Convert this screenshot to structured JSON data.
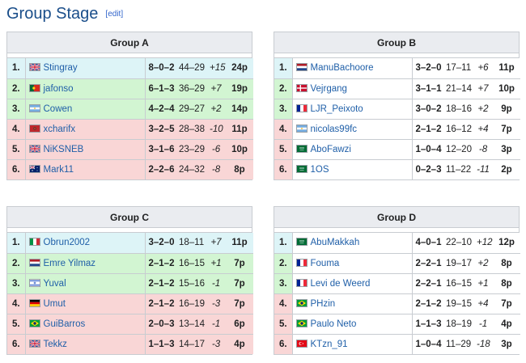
{
  "section": {
    "title": "Group Stage",
    "edit_label": "edit",
    "bracket_open": "[",
    "bracket_close": "]"
  },
  "groups": [
    {
      "title": "Group A",
      "rows": [
        {
          "pos": "1.",
          "flag": "uk",
          "player": "Stingray",
          "record": "8–0–2",
          "score": "44–29",
          "diff": "+15",
          "pts": "24p",
          "status": "adv"
        },
        {
          "pos": "2.",
          "flag": "portugal",
          "player": "jafonso",
          "record": "6–1–3",
          "score": "36–29",
          "diff": "+7",
          "pts": "19p",
          "status": "qual"
        },
        {
          "pos": "3.",
          "flag": "argentina",
          "player": "Cowen",
          "record": "4–2–4",
          "score": "29–27",
          "diff": "+2",
          "pts": "14p",
          "status": "qual"
        },
        {
          "pos": "4.",
          "flag": "morocco",
          "player": "xcharifx",
          "record": "3–2–5",
          "score": "28–38",
          "diff": "-10",
          "pts": "11p",
          "status": "out"
        },
        {
          "pos": "5.",
          "flag": "uk",
          "player": "NiKSNEB",
          "record": "3–1–6",
          "score": "23–29",
          "diff": "-6",
          "pts": "10p",
          "status": "out"
        },
        {
          "pos": "6.",
          "flag": "australia",
          "player": "Mark11",
          "record": "2–2–6",
          "score": "24–32",
          "diff": "-8",
          "pts": "8p",
          "status": "out"
        }
      ]
    },
    {
      "title": "Group B",
      "rows": [
        {
          "pos": "1.",
          "flag": "netherlands",
          "player": "ManuBachoore",
          "record": "3–2–0",
          "score": "17–11",
          "diff": "+6",
          "pts": "11p",
          "status": "adv"
        },
        {
          "pos": "2.",
          "flag": "denmark",
          "player": "Vejrgang",
          "record": "3–1–1",
          "score": "21–14",
          "diff": "+7",
          "pts": "10p",
          "status": "qual"
        },
        {
          "pos": "3.",
          "flag": "france",
          "player": "LJR_Peixoto",
          "record": "3–0–2",
          "score": "18–16",
          "diff": "+2",
          "pts": "9p",
          "status": "qual"
        },
        {
          "pos": "4.",
          "flag": "argentina",
          "player": "nicolas99fc",
          "record": "2–1–2",
          "score": "16–12",
          "diff": "+4",
          "pts": "7p",
          "status": "out"
        },
        {
          "pos": "5.",
          "flag": "saudi",
          "player": "AboFawzi",
          "record": "1–0–4",
          "score": "12–20",
          "diff": "-8",
          "pts": "3p",
          "status": "out"
        },
        {
          "pos": "6.",
          "flag": "saudi",
          "player": "1OS",
          "record": "0–2–3",
          "score": "11–22",
          "diff": "-11",
          "pts": "2p",
          "status": "out"
        }
      ]
    },
    {
      "title": "Group C",
      "rows": [
        {
          "pos": "1.",
          "flag": "italy",
          "player": "Obrun2002",
          "record": "3–2–0",
          "score": "18–11",
          "diff": "+7",
          "pts": "11p",
          "status": "adv"
        },
        {
          "pos": "2.",
          "flag": "netherlands",
          "player": "Emre Yilmaz",
          "record": "2–1–2",
          "score": "16–15",
          "diff": "+1",
          "pts": "7p",
          "status": "qual"
        },
        {
          "pos": "3.",
          "flag": "israel",
          "player": "Yuval",
          "record": "2–1–2",
          "score": "15–16",
          "diff": "-1",
          "pts": "7p",
          "status": "qual"
        },
        {
          "pos": "4.",
          "flag": "germany",
          "player": "Umut",
          "record": "2–1–2",
          "score": "16–19",
          "diff": "-3",
          "pts": "7p",
          "status": "out"
        },
        {
          "pos": "5.",
          "flag": "brazil",
          "player": "GuiBarros",
          "record": "2–0–3",
          "score": "13–14",
          "diff": "-1",
          "pts": "6p",
          "status": "out"
        },
        {
          "pos": "6.",
          "flag": "uk",
          "player": "Tekkz",
          "record": "1–1–3",
          "score": "14–17",
          "diff": "-3",
          "pts": "4p",
          "status": "out"
        }
      ]
    },
    {
      "title": "Group D",
      "rows": [
        {
          "pos": "1.",
          "flag": "saudi",
          "player": "AbuMakkah",
          "record": "4–0–1",
          "score": "22–10",
          "diff": "+12",
          "pts": "12p",
          "status": "adv"
        },
        {
          "pos": "2.",
          "flag": "france",
          "player": "Fouma",
          "record": "2–2–1",
          "score": "19–17",
          "diff": "+2",
          "pts": "8p",
          "status": "qual"
        },
        {
          "pos": "3.",
          "flag": "france",
          "player": "Levi de Weerd",
          "record": "2–2–1",
          "score": "16–15",
          "diff": "+1",
          "pts": "8p",
          "status": "qual"
        },
        {
          "pos": "4.",
          "flag": "brazil",
          "player": "PHzin",
          "record": "2–1–2",
          "score": "19–15",
          "diff": "+4",
          "pts": "7p",
          "status": "out"
        },
        {
          "pos": "5.",
          "flag": "brazil",
          "player": "Paulo Neto",
          "record": "1–1–3",
          "score": "18–19",
          "diff": "-1",
          "pts": "4p",
          "status": "out"
        },
        {
          "pos": "6.",
          "flag": "turkey",
          "player": "KTzn_91",
          "record": "1–0–4",
          "score": "11–29",
          "diff": "-18",
          "pts": "3p",
          "status": "out"
        }
      ]
    }
  ],
  "colors": {
    "advance": "#ddf4f7",
    "qualify": "#d2f5d2",
    "eliminated": "#f9d6d6",
    "header": "#eaecf0",
    "link": "#1f5fa8",
    "title": "#1a4e8a"
  }
}
